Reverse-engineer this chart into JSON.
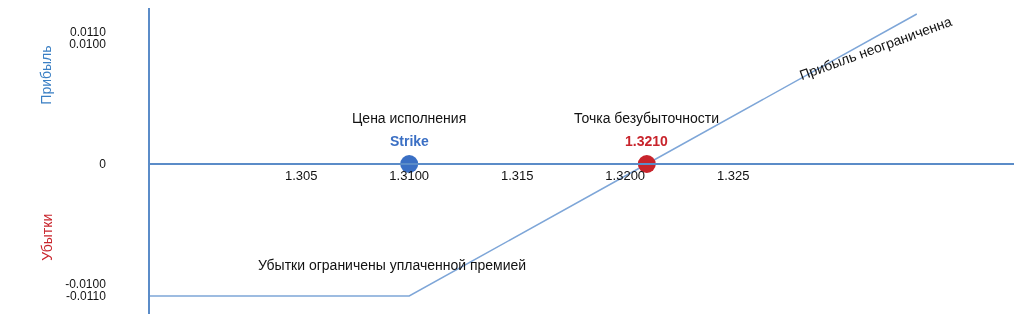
{
  "chart_data": {
    "type": "line",
    "ylabel": "Прибыль",
    "xlim": [
      1.298,
      1.338
    ],
    "xticks": [
      1.305,
      {
        "value": 1.31,
        "label": "1.3100"
      },
      1.315,
      {
        "value": 1.32,
        "label": "1.3200"
      },
      1.325
    ],
    "ylim": [
      -0.0125,
      0.013
    ],
    "yticks": [
      {
        "value": 0.011,
        "label": "0.0110"
      },
      {
        "value": 0.01,
        "label": "0.0100"
      },
      0,
      {
        "value": -0.01,
        "label": "-0.0100"
      },
      {
        "value": -0.011,
        "label": "-0.0110"
      }
    ],
    "grid": false,
    "legend": false,
    "tick_labels": true,
    "series": [
      {
        "type": "line",
        "color": "#7ea6d8",
        "x": [
          1.298,
          1.31,
          1.321,
          1.3335
        ],
        "values": [
          -0.011,
          -0.011,
          0,
          0.0125
        ],
        "marker": "none"
      },
      {
        "type": "scatter",
        "x": [
          1.31,
          1.321
        ],
        "values": [
          0,
          0
        ],
        "colors": [
          "#3a6fc4",
          "#c8242c"
        ],
        "marker": "circle"
      }
    ],
    "annotations": [
      "Цена исполнения",
      "Strike",
      "Точка безубыточности",
      "1.3210",
      "Прибыль неограниченна",
      "Убытки ограничены уплаченной премией",
      "Убытки"
    ]
  }
}
